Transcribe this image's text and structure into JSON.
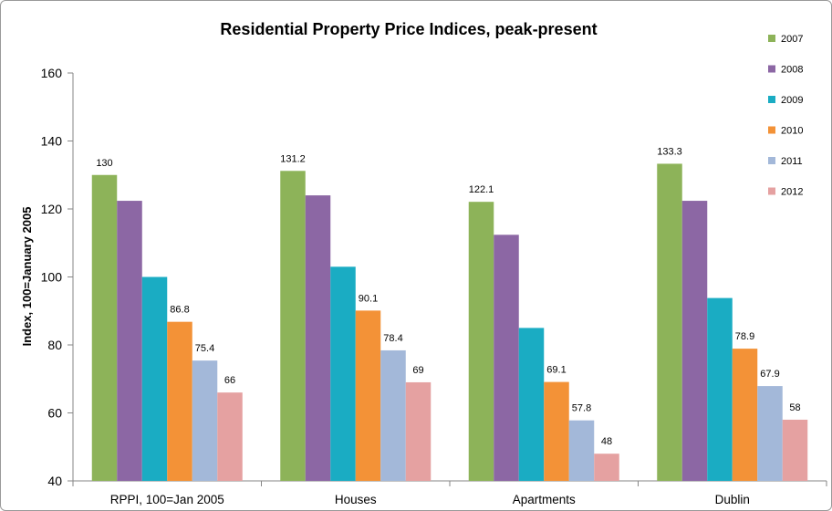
{
  "chart_data": {
    "type": "bar",
    "title": "Residential Property Price Indices, peak-present",
    "ylabel": "Index, 100=January 2005",
    "xlabel": "",
    "ylim": [
      40,
      160
    ],
    "yticks": [
      40,
      60,
      80,
      100,
      120,
      140,
      160
    ],
    "grid": false,
    "legend_position": "right",
    "categories": [
      "RPPI, 100=Jan 2005",
      "Houses",
      "Apartments",
      "Dublin"
    ],
    "series": [
      {
        "name": "2007",
        "color": "#8db359",
        "values": [
          130,
          131.2,
          122.1,
          133.3
        ],
        "labels": [
          "130",
          "131.2",
          "122.1",
          "133.3"
        ]
      },
      {
        "name": "2008",
        "color": "#8c67a4",
        "values": [
          122.4,
          124,
          112.4,
          122.4
        ],
        "labels": [
          "",
          "",
          "",
          ""
        ]
      },
      {
        "name": "2009",
        "color": "#1aacc3",
        "values": [
          100,
          103,
          85,
          93.8
        ],
        "labels": [
          "",
          "",
          "",
          ""
        ]
      },
      {
        "name": "2010",
        "color": "#f39237",
        "values": [
          86.8,
          90.1,
          69.1,
          78.9
        ],
        "labels": [
          "86.8",
          "90.1",
          "69.1",
          "78.9"
        ]
      },
      {
        "name": "2011",
        "color": "#a3b8d9",
        "values": [
          75.4,
          78.4,
          57.8,
          67.9
        ],
        "labels": [
          "75.4",
          "78.4",
          "57.8",
          "67.9"
        ]
      },
      {
        "name": "2012",
        "color": "#e5a1a1",
        "values": [
          66,
          69,
          48,
          58
        ],
        "labels": [
          "66",
          "69",
          "48",
          "58"
        ]
      }
    ]
  }
}
